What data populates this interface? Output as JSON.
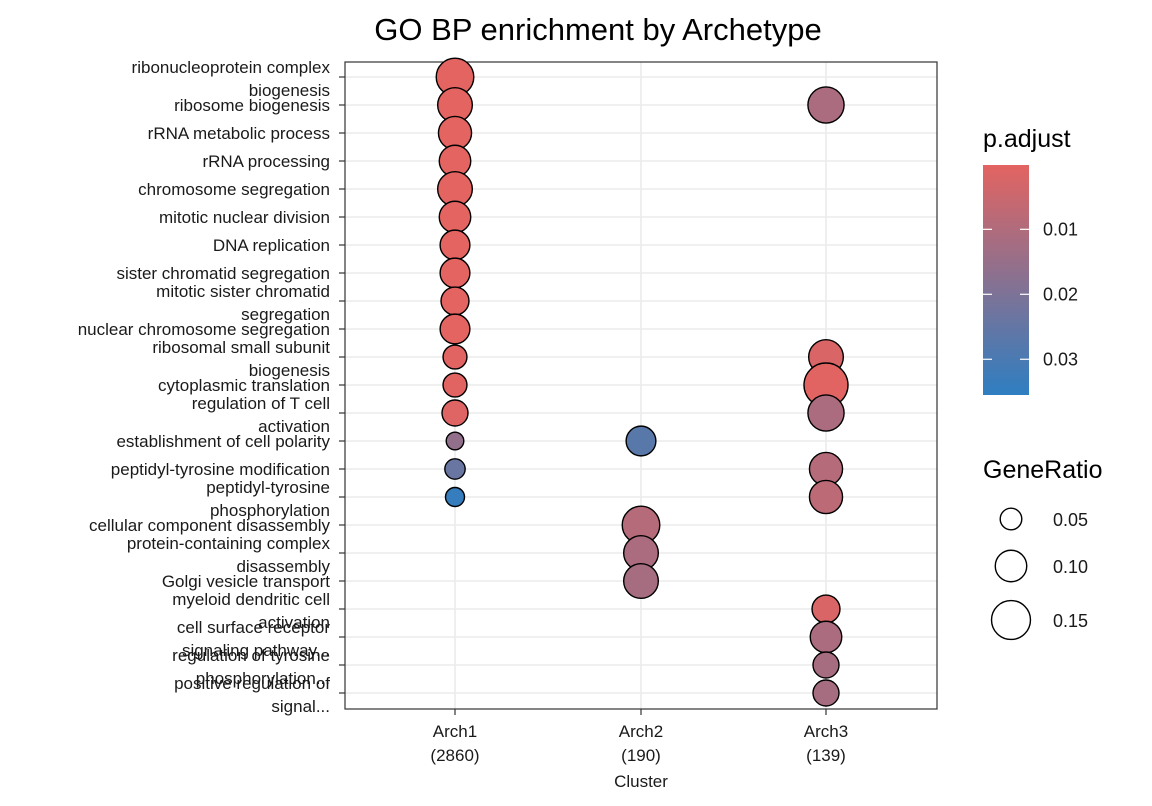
{
  "chart_data": {
    "type": "scatter",
    "title": "GO BP enrichment by Archetype",
    "xlabel": "Cluster",
    "ylabel": "",
    "x_categories": [
      {
        "name": "Arch1",
        "count": "(2860)"
      },
      {
        "name": "Arch2",
        "count": "(190)"
      },
      {
        "name": "Arch3",
        "count": "(139)"
      }
    ],
    "y_categories": [
      {
        "lines": [
          "ribonucleoprotein complex",
          "biogenesis"
        ]
      },
      {
        "lines": [
          "ribosome biogenesis"
        ]
      },
      {
        "lines": [
          "rRNA metabolic process"
        ]
      },
      {
        "lines": [
          "rRNA processing"
        ]
      },
      {
        "lines": [
          "chromosome segregation"
        ]
      },
      {
        "lines": [
          "mitotic nuclear division"
        ]
      },
      {
        "lines": [
          "DNA replication"
        ]
      },
      {
        "lines": [
          "sister chromatid segregation"
        ]
      },
      {
        "lines": [
          "mitotic sister chromatid",
          "segregation"
        ]
      },
      {
        "lines": [
          "nuclear chromosome segregation"
        ]
      },
      {
        "lines": [
          "ribosomal small subunit",
          "biogenesis"
        ]
      },
      {
        "lines": [
          "cytoplasmic translation"
        ]
      },
      {
        "lines": [
          "regulation of T cell",
          "activation"
        ]
      },
      {
        "lines": [
          "establishment of cell polarity"
        ]
      },
      {
        "lines": [
          "peptidyl-tyrosine modification"
        ]
      },
      {
        "lines": [
          "peptidyl-tyrosine",
          "phosphorylation"
        ]
      },
      {
        "lines": [
          "cellular component disassembly"
        ]
      },
      {
        "lines": [
          "protein-containing complex",
          "disassembly"
        ]
      },
      {
        "lines": [
          "Golgi vesicle transport"
        ]
      },
      {
        "lines": [
          "myeloid dendritic cell",
          "activation"
        ]
      },
      {
        "lines": [
          "cell surface receptor",
          "signaling pathway..."
        ]
      },
      {
        "lines": [
          "regulation of tyrosine",
          "phosphorylation..."
        ]
      },
      {
        "lines": [
          "positive regulation of",
          "signal..."
        ]
      }
    ],
    "points": [
      {
        "x": 0,
        "y": 0,
        "gene_ratio": 0.14,
        "p_adjust": 0.0001
      },
      {
        "x": 0,
        "y": 1,
        "gene_ratio": 0.12,
        "p_adjust": 0.0001
      },
      {
        "x": 0,
        "y": 2,
        "gene_ratio": 0.11,
        "p_adjust": 0.0001
      },
      {
        "x": 0,
        "y": 3,
        "gene_ratio": 0.1,
        "p_adjust": 0.0001
      },
      {
        "x": 0,
        "y": 4,
        "gene_ratio": 0.12,
        "p_adjust": 0.0001
      },
      {
        "x": 0,
        "y": 5,
        "gene_ratio": 0.1,
        "p_adjust": 0.0001
      },
      {
        "x": 0,
        "y": 6,
        "gene_ratio": 0.09,
        "p_adjust": 0.0001
      },
      {
        "x": 0,
        "y": 7,
        "gene_ratio": 0.09,
        "p_adjust": 0.0001
      },
      {
        "x": 0,
        "y": 8,
        "gene_ratio": 0.08,
        "p_adjust": 0.0001
      },
      {
        "x": 0,
        "y": 9,
        "gene_ratio": 0.09,
        "p_adjust": 0.0001
      },
      {
        "x": 0,
        "y": 10,
        "gene_ratio": 0.06,
        "p_adjust": 0.0005
      },
      {
        "x": 0,
        "y": 11,
        "gene_ratio": 0.06,
        "p_adjust": 0.0005
      },
      {
        "x": 0,
        "y": 12,
        "gene_ratio": 0.07,
        "p_adjust": 0.001
      },
      {
        "x": 0,
        "y": 13,
        "gene_ratio": 0.035,
        "p_adjust": 0.016
      },
      {
        "x": 0,
        "y": 14,
        "gene_ratio": 0.045,
        "p_adjust": 0.024
      },
      {
        "x": 0,
        "y": 15,
        "gene_ratio": 0.04,
        "p_adjust": 0.034
      },
      {
        "x": 1,
        "y": 13,
        "gene_ratio": 0.09,
        "p_adjust": 0.027
      },
      {
        "x": 1,
        "y": 16,
        "gene_ratio": 0.14,
        "p_adjust": 0.009
      },
      {
        "x": 1,
        "y": 17,
        "gene_ratio": 0.12,
        "p_adjust": 0.011
      },
      {
        "x": 1,
        "y": 18,
        "gene_ratio": 0.12,
        "p_adjust": 0.012
      },
      {
        "x": 2,
        "y": 1,
        "gene_ratio": 0.13,
        "p_adjust": 0.011
      },
      {
        "x": 2,
        "y": 10,
        "gene_ratio": 0.12,
        "p_adjust": 0.002
      },
      {
        "x": 2,
        "y": 11,
        "gene_ratio": 0.19,
        "p_adjust": 0.0003
      },
      {
        "x": 2,
        "y": 12,
        "gene_ratio": 0.13,
        "p_adjust": 0.011
      },
      {
        "x": 2,
        "y": 14,
        "gene_ratio": 0.11,
        "p_adjust": 0.009
      },
      {
        "x": 2,
        "y": 15,
        "gene_ratio": 0.11,
        "p_adjust": 0.008
      },
      {
        "x": 2,
        "y": 19,
        "gene_ratio": 0.08,
        "p_adjust": 0.002
      },
      {
        "x": 2,
        "y": 20,
        "gene_ratio": 0.1,
        "p_adjust": 0.011
      },
      {
        "x": 2,
        "y": 21,
        "gene_ratio": 0.07,
        "p_adjust": 0.012
      },
      {
        "x": 2,
        "y": 22,
        "gene_ratio": 0.07,
        "p_adjust": 0.012
      }
    ],
    "color_legend": {
      "title": "p.adjust",
      "ticks": [
        {
          "value": 0.01,
          "label": "0.01"
        },
        {
          "value": 0.02,
          "label": "0.02"
        },
        {
          "value": 0.03,
          "label": "0.03"
        }
      ],
      "range": [
        0.0001,
        0.0355
      ],
      "low_color": "#E36461",
      "high_color": "#2E7EC1"
    },
    "size_legend": {
      "title": "GeneRatio",
      "ticks": [
        {
          "value": 0.05,
          "label": "0.05"
        },
        {
          "value": 0.1,
          "label": "0.10"
        },
        {
          "value": 0.15,
          "label": "0.15"
        }
      ],
      "range": [
        0.03,
        0.19
      ]
    },
    "grid": true,
    "legend_placement": "right"
  }
}
